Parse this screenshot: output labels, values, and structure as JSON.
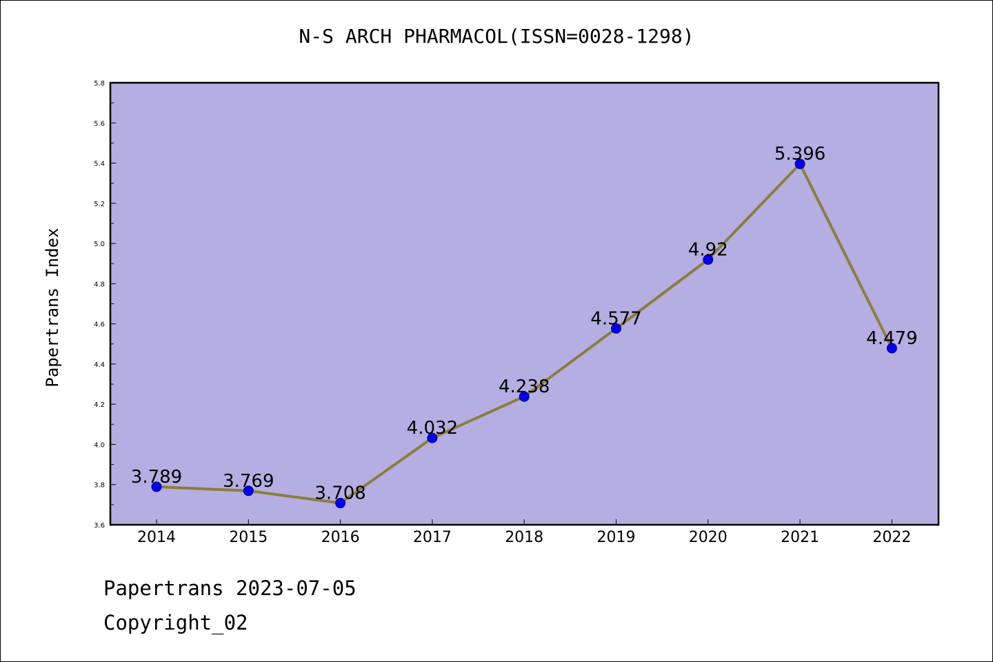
{
  "chart_data": {
    "type": "line",
    "title": "N-S ARCH PHARMACOL(ISSN=0028-1298)",
    "xlabel": "",
    "ylabel": "Papertrans Index",
    "categories": [
      "2014",
      "2015",
      "2016",
      "2017",
      "2018",
      "2019",
      "2020",
      "2021",
      "2022"
    ],
    "values": [
      3.789,
      3.769,
      3.708,
      4.032,
      4.238,
      4.577,
      4.92,
      5.396,
      4.479
    ],
    "data_labels": [
      "3.789",
      "3.769",
      "3.708",
      "4.032",
      "4.238",
      "4.577",
      "4.92",
      "5.396",
      "4.479"
    ],
    "ylim": [
      3.6,
      5.8
    ],
    "y_ticks": [
      3.6,
      3.8,
      4.0,
      4.2,
      4.4,
      4.6,
      4.8,
      5.0,
      5.2,
      5.4,
      5.6,
      5.8
    ],
    "y_tick_labels": [
      "3.6",
      "3.8",
      "4.0",
      "4.2",
      "4.4",
      "4.6",
      "4.8",
      "5.0",
      "5.2",
      "5.4",
      "5.6",
      "5.8"
    ],
    "grid": false,
    "legend": "none",
    "colors": {
      "plot_background": "#b5aee2",
      "line": "#8c7d3c",
      "marker": "#0000ee",
      "marker_edge": "#00008b"
    }
  },
  "footer": {
    "date_line": "Papertrans 2023-07-05",
    "copyright_line": "Copyright_02"
  }
}
